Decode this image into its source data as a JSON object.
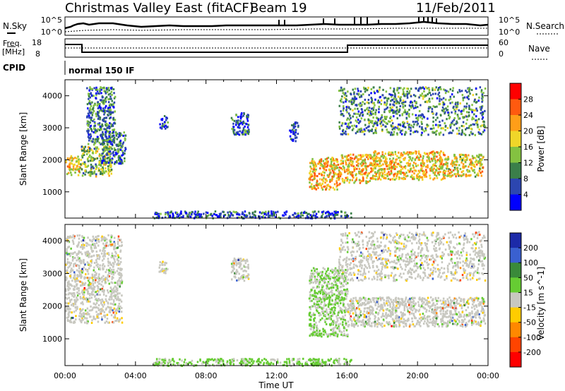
{
  "header": {
    "title": "Christmas Valley East (fitACF)",
    "beam": "Beam 19",
    "date": "11/Feb/2011"
  },
  "top_panels": {
    "nsky_label": "N.Sky",
    "nsky_ticks": [
      "10^5",
      "10^0"
    ],
    "nsearch_label": "N.Search",
    "freq_label_1": "Freq.",
    "freq_label_2": "[MHz]",
    "freq_ticks": [
      "18",
      "8"
    ],
    "nave_label": "Nave",
    "nave_ticks": [
      "60",
      "0"
    ],
    "cpid_label": "CPID",
    "cpid_value": "normal 150 IF"
  },
  "chart_data": [
    {
      "type": "heatmap",
      "title": "",
      "ylabel": "Slant Range [km]",
      "xlabel": "",
      "y_ticks": [
        "1000",
        "2000",
        "3000",
        "4000"
      ],
      "ylim": [
        180,
        4500
      ],
      "x_ticks": [
        "00:00",
        "04:00",
        "08:00",
        "12:00",
        "16:00",
        "20:00",
        "00:00"
      ],
      "xlim_hours": [
        0,
        24
      ],
      "colorbar": {
        "label": "Power [dB]",
        "ticks": [
          "4",
          "8",
          "12",
          "16",
          "20",
          "24",
          "28"
        ],
        "range": [
          0,
          32
        ],
        "colors": [
          "#0000ff",
          "#2c46b0",
          "#3b7f4a",
          "#84c241",
          "#f0d629",
          "#ff9e18",
          "#ff5a0f",
          "#ff0000"
        ]
      },
      "echo_regions": [
        {
          "t0": 0.0,
          "t1": 0.9,
          "r0": 1550,
          "r1": 2150,
          "value": 18
        },
        {
          "t0": 0.9,
          "t1": 2.6,
          "r0": 1500,
          "r1": 2450,
          "value": 14
        },
        {
          "t0": 1.2,
          "t1": 2.8,
          "r0": 2500,
          "r1": 4300,
          "value": 9
        },
        {
          "t0": 2.0,
          "t1": 3.4,
          "r0": 1900,
          "r1": 2900,
          "value": 8
        },
        {
          "t0": 5.3,
          "t1": 5.8,
          "r0": 3000,
          "r1": 3400,
          "value": 6
        },
        {
          "t0": 9.4,
          "t1": 10.4,
          "r0": 2800,
          "r1": 3500,
          "value": 7
        },
        {
          "t0": 12.7,
          "t1": 13.2,
          "r0": 2600,
          "r1": 3200,
          "value": 6
        },
        {
          "t0": 13.8,
          "t1": 15.6,
          "r0": 1100,
          "r1": 2100,
          "value": 20
        },
        {
          "t0": 15.6,
          "t1": 17.4,
          "r0": 1300,
          "r1": 2200,
          "value": 20
        },
        {
          "t0": 17.4,
          "t1": 21.5,
          "r0": 1400,
          "r1": 2300,
          "value": 19
        },
        {
          "t0": 21.5,
          "t1": 23.7,
          "r0": 1500,
          "r1": 2200,
          "value": 18
        },
        {
          "t0": 15.5,
          "t1": 23.8,
          "r0": 2800,
          "r1": 4300,
          "value": 10
        }
      ],
      "low_range_band": {
        "t0": 5.0,
        "t1": 16.2,
        "r0": 200,
        "r1": 420,
        "value": 6
      }
    },
    {
      "type": "heatmap",
      "title": "",
      "ylabel": "Slant Range [km]",
      "xlabel": "Time UT",
      "y_ticks": [
        "1000",
        "2000",
        "3000",
        "4000"
      ],
      "ylim": [
        180,
        4500
      ],
      "x_ticks": [
        "00:00",
        "04:00",
        "08:00",
        "12:00",
        "16:00",
        "20:00",
        "00:00"
      ],
      "xlim_hours": [
        0,
        24
      ],
      "colorbar": {
        "label": "Velocity [m s^-1]",
        "ticks": [
          "200",
          "100",
          "50",
          "15",
          "-15",
          "-50",
          "-100",
          "-200"
        ],
        "range": [
          -250,
          250
        ],
        "colors": [
          "#1c2aa8",
          "#3a60d0",
          "#3a8a3a",
          "#66cc33",
          "#c8c8c0",
          "#ffcc00",
          "#ff8800",
          "#ff4400",
          "#ff0000"
        ]
      },
      "echo_regions": [
        {
          "t0": 0.0,
          "t1": 3.2,
          "r0": 1500,
          "r1": 4200,
          "value": 0
        },
        {
          "t0": 5.3,
          "t1": 5.8,
          "r0": 3000,
          "r1": 3400,
          "value": 0
        },
        {
          "t0": 9.4,
          "t1": 10.4,
          "r0": 2800,
          "r1": 3500,
          "value": 0
        },
        {
          "t0": 13.8,
          "t1": 16.0,
          "r0": 1100,
          "r1": 3200,
          "value": 30
        },
        {
          "t0": 16.0,
          "t1": 23.8,
          "r0": 1400,
          "r1": 2300,
          "value": 0
        },
        {
          "t0": 15.5,
          "t1": 23.8,
          "r0": 2800,
          "r1": 4300,
          "value": 0
        }
      ],
      "low_range_band": {
        "t0": 5.0,
        "t1": 16.2,
        "r0": 200,
        "r1": 420,
        "value": 40
      }
    }
  ]
}
